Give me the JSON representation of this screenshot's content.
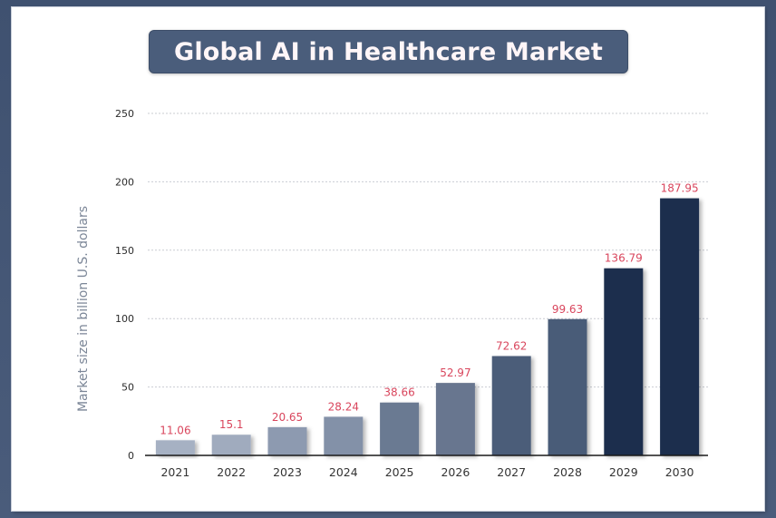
{
  "chart_data": {
    "type": "bar",
    "title": "Global AI in Healthcare Market",
    "xlabel": "",
    "ylabel": "Market size in billion U.S. dollars",
    "categories": [
      "2021",
      "2022",
      "2023",
      "2024",
      "2025",
      "2026",
      "2027",
      "2028",
      "2029",
      "2030"
    ],
    "values": [
      11.06,
      15.1,
      20.65,
      28.24,
      38.66,
      52.97,
      72.62,
      99.63,
      136.79,
      187.95
    ],
    "data_labels": [
      "11.06",
      "15.1",
      "20.65",
      "28.24",
      "38.66",
      "52.97",
      "72.62",
      "99.63",
      "136.79",
      "187.95"
    ],
    "ylim": [
      0,
      250
    ],
    "yticks": [
      0,
      50,
      100,
      150,
      200,
      250
    ],
    "grid": true,
    "legend": "none",
    "bar_colors": [
      "#a6b1c3",
      "#a0abbe",
      "#8d9ab0",
      "#8391a8",
      "#6b7a92",
      "#67768f",
      "#4c5d79",
      "#4a5b78",
      "#1b2d4d",
      "#1b2d4d"
    ],
    "label_color": "#d9465d"
  }
}
